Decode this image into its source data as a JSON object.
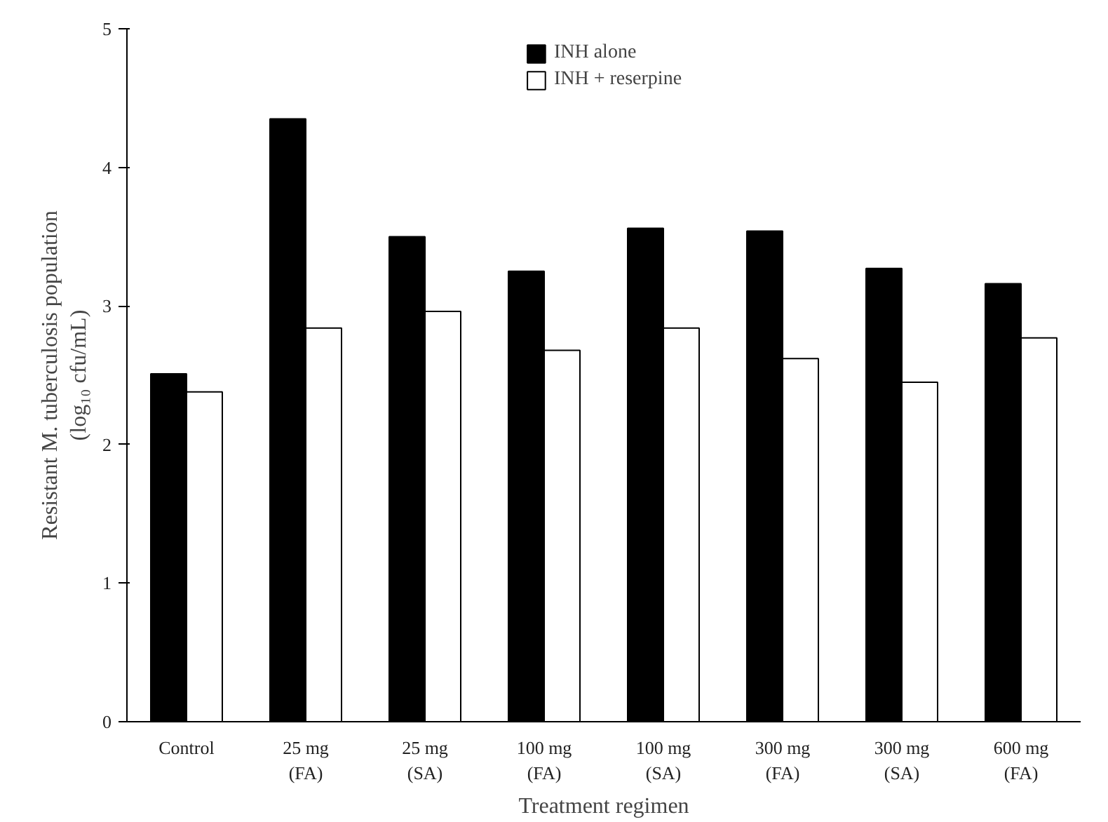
{
  "chart_data": {
    "type": "bar",
    "xlabel": "Treatment regimen",
    "ylabel": "Resistant M. tuberculosis population\n(log₁₀ cfu/mL)",
    "categories": [
      "Control",
      "25 mg\n(FA)",
      "25 mg\n(SA)",
      "100 mg\n(FA)",
      "100 mg\n(SA)",
      "300 mg\n(FA)",
      "300 mg\n(SA)",
      "600 mg\n(FA)"
    ],
    "series": [
      {
        "name": "INH alone",
        "color": "#000000",
        "values": [
          2.51,
          4.35,
          3.5,
          3.25,
          3.56,
          3.54,
          3.27,
          3.16
        ]
      },
      {
        "name": "INH + reserpine",
        "color": "#ffffff",
        "values": [
          2.38,
          2.84,
          2.96,
          2.68,
          2.84,
          2.62,
          2.45,
          2.77
        ]
      }
    ],
    "ylim": [
      0,
      5
    ],
    "yticks": [
      0,
      1,
      2,
      3,
      4,
      5
    ],
    "grid": false,
    "legend": "top"
  }
}
